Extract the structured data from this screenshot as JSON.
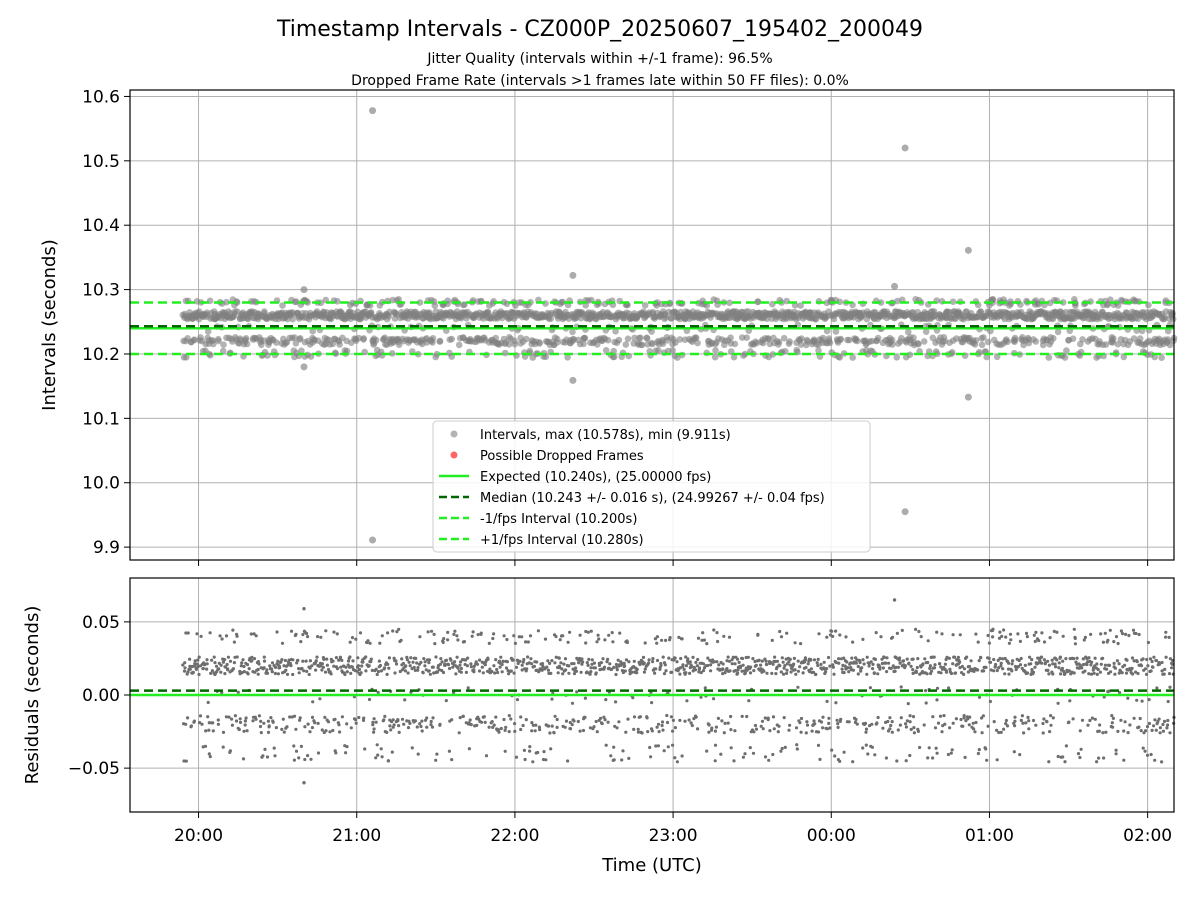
{
  "title": "Timestamp Intervals - CZ000P_20250607_195402_200049",
  "subtitle_1": "Jitter Quality (intervals within +/-1 frame): 96.5%",
  "subtitle_2": "Dropped Frame Rate (intervals >1 frames late within 50 FF files): 0.0%",
  "colors": {
    "points": "#808080",
    "dropped": "#ff0000",
    "expected": "#22ee22",
    "median": "#006400",
    "bounds": "#22ee22",
    "grid": "#b0b0b0"
  },
  "chart_data": [
    {
      "type": "scatter",
      "panel": "intervals",
      "ylabel": "Intervals (seconds)",
      "ylim": [
        9.88,
        10.61
      ],
      "yticks": [
        9.9,
        10.0,
        10.1,
        10.2,
        10.3,
        10.4,
        10.5,
        10.6
      ],
      "ytick_labels": [
        "9.9",
        "10.0",
        "10.1",
        "10.2",
        "10.3",
        "10.4",
        "10.5",
        "10.6"
      ],
      "xlim": [
        "19:34",
        "02:10"
      ],
      "xticks": [
        "20:00",
        "21:00",
        "22:00",
        "23:00",
        "00:00",
        "01:00",
        "02:00"
      ],
      "grid": true,
      "data_range": [
        "19:54",
        "02:10"
      ],
      "bands": [
        10.22,
        10.26
      ],
      "band_share": 0.78,
      "outliers": [
        {
          "x": "21:06",
          "y": 10.578
        },
        {
          "x": "00:28",
          "y": 10.52
        },
        {
          "x": "00:52",
          "y": 10.361
        },
        {
          "x": "22:22",
          "y": 10.322
        },
        {
          "x": "00:24",
          "y": 10.305
        },
        {
          "x": "20:40",
          "y": 10.3
        },
        {
          "x": "20:40",
          "y": 10.18
        },
        {
          "x": "22:22",
          "y": 10.159
        },
        {
          "x": "00:52",
          "y": 10.133
        },
        {
          "x": "00:28",
          "y": 9.955
        },
        {
          "x": "21:06",
          "y": 9.911
        }
      ],
      "lines": [
        {
          "name": "Expected (10.240s), (25.00000 fps)",
          "y": 10.24,
          "style": "solid",
          "color": "#22ee22"
        },
        {
          "name": "Median (10.243 +/- 0.016 s), (24.99267 +/- 0.04 fps)",
          "y": 10.243,
          "style": "dashed",
          "color": "#006400"
        },
        {
          "name": "-1/fps Interval (10.200s)",
          "y": 10.2,
          "style": "dashed",
          "color": "#22ee22"
        },
        {
          "name": "+1/fps Interval (10.280s)",
          "y": 10.28,
          "style": "dashed",
          "color": "#22ee22"
        }
      ],
      "legend": {
        "placement": "lower center",
        "entries": [
          {
            "label": "Intervals, max (10.578s), min (9.911s)",
            "kind": "marker",
            "color": "#808080"
          },
          {
            "label": "Possible Dropped Frames",
            "kind": "marker",
            "color": "#ff0000"
          },
          {
            "label": "Expected (10.240s), (25.00000 fps)",
            "kind": "solid",
            "color": "#22ee22"
          },
          {
            "label": "Median (10.243 +/- 0.016 s), (24.99267 +/- 0.04 fps)",
            "kind": "dashed",
            "color": "#006400"
          },
          {
            "label": "-1/fps Interval (10.200s)",
            "kind": "dashed",
            "color": "#22ee22"
          },
          {
            "label": "+1/fps Interval (10.280s)",
            "kind": "dashed",
            "color": "#22ee22"
          }
        ]
      }
    },
    {
      "type": "scatter",
      "panel": "residuals",
      "ylabel": "Residuals (seconds)",
      "xlabel": "Time (UTC)",
      "ylim": [
        -0.08,
        0.08
      ],
      "yticks": [
        -0.05,
        0.0,
        0.05
      ],
      "ytick_labels": [
        "−0.05",
        "0.00",
        "0.05"
      ],
      "xlim": [
        "19:34",
        "02:10"
      ],
      "xticks": [
        "20:00",
        "21:00",
        "22:00",
        "23:00",
        "00:00",
        "01:00",
        "02:00"
      ],
      "xtick_labels": [
        "20:00",
        "21:00",
        "22:00",
        "23:00",
        "00:00",
        "01:00",
        "02:00"
      ],
      "grid": true,
      "bands": [
        -0.02,
        0.0,
        0.02
      ],
      "outliers": [
        {
          "x": "20:40",
          "y": 0.059
        },
        {
          "x": "20:40",
          "y": -0.06
        },
        {
          "x": "00:24",
          "y": 0.065
        },
        {
          "x": "21:12",
          "y": -0.045
        }
      ],
      "lines": [
        {
          "name": "zero",
          "y": 0.0,
          "style": "solid",
          "color": "#22ee22"
        },
        {
          "name": "median offset",
          "y": 0.003,
          "style": "dashed",
          "color": "#006400"
        }
      ]
    }
  ]
}
